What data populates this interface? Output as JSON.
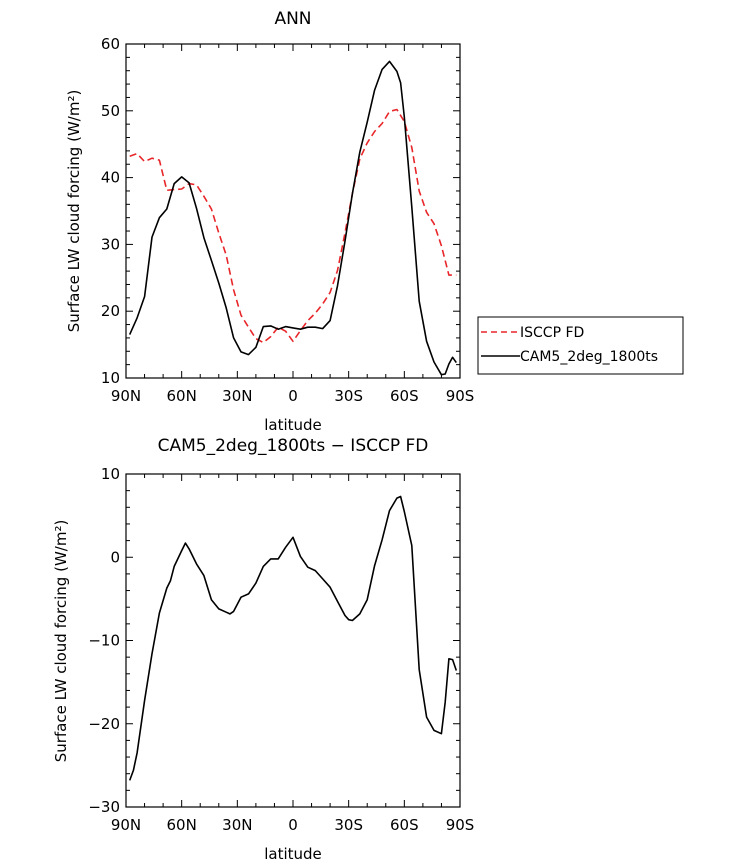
{
  "chart_data": [
    {
      "type": "line",
      "title": "ANN",
      "xlabel": "latitude",
      "ylabel": "Surface LW cloud forcing (W/m²)",
      "x_tick_labels": [
        "90N",
        "60N",
        "30N",
        "0",
        "30S",
        "60S",
        "90S"
      ],
      "y_tick_labels": [
        "10",
        "20",
        "30",
        "40",
        "50",
        "60"
      ],
      "xlim": [
        90,
        -90
      ],
      "ylim": [
        10,
        60
      ],
      "y_ticks": [
        10,
        20,
        30,
        40,
        50,
        60
      ],
      "legend_position": "right",
      "series": [
        {
          "name": "ISCCP FD",
          "color": "#e8262a",
          "dash": "dashed",
          "x": [
            88,
            84,
            80,
            76,
            72,
            68,
            64,
            60,
            56,
            52,
            48,
            44,
            40,
            36,
            32,
            28,
            24,
            20,
            16,
            12,
            8,
            4,
            0,
            -4,
            -8,
            -12,
            -16,
            -20,
            -24,
            -28,
            -32,
            -36,
            -40,
            -44,
            -48,
            -52,
            -56,
            -60,
            -64,
            -68,
            -72,
            -76,
            -80,
            -84,
            -88
          ],
          "y": [
            43.2,
            43.6,
            42.4,
            42.9,
            42.6,
            38.1,
            38.2,
            38.3,
            39.1,
            38.9,
            37.2,
            35.3,
            31.7,
            28.4,
            23.2,
            19.4,
            17.6,
            15.9,
            15.3,
            16.2,
            17.6,
            17.0,
            15.5,
            17.1,
            18.6,
            19.7,
            21.1,
            22.8,
            26.1,
            31.7,
            37.6,
            42.8,
            45.2,
            46.9,
            48.1,
            49.9,
            50.2,
            48.4,
            44.5,
            38.0,
            34.8,
            33.1,
            29.8,
            25.4,
            25.4
          ]
        },
        {
          "name": "CAM5_2deg_1800ts",
          "color": "#000000",
          "dash": "solid",
          "x": [
            88,
            84,
            80,
            76,
            72,
            68,
            64,
            60,
            56,
            52,
            48,
            44,
            40,
            36,
            32,
            28,
            24,
            20,
            16,
            12,
            8,
            4,
            0,
            -4,
            -8,
            -12,
            -16,
            -20,
            -24,
            -28,
            -32,
            -36,
            -40,
            -44,
            -48,
            -52,
            -56,
            -58,
            -60,
            -64,
            -68,
            -72,
            -76,
            -80,
            -82,
            -84,
            -86,
            -88
          ],
          "y": [
            16.5,
            19.0,
            22.2,
            31.1,
            34.0,
            35.3,
            39.1,
            40.1,
            39.2,
            35.4,
            31.0,
            27.6,
            24.2,
            20.5,
            16.0,
            13.9,
            13.5,
            14.6,
            17.7,
            17.8,
            17.3,
            17.7,
            17.5,
            17.3,
            17.6,
            17.6,
            17.4,
            18.6,
            23.8,
            30.5,
            37.6,
            43.8,
            48.3,
            53.1,
            56.2,
            57.4,
            55.9,
            54.2,
            49.1,
            35.6,
            21.5,
            15.5,
            12.4,
            10.5,
            10.6,
            12.1,
            13.1,
            12.3
          ]
        }
      ]
    },
    {
      "type": "line",
      "title": "CAM5_2deg_1800ts − ISCCP FD",
      "xlabel": "latitude",
      "ylabel": "Surface LW cloud forcing (W/m²)",
      "x_tick_labels": [
        "90N",
        "60N",
        "30N",
        "0",
        "30S",
        "60S",
        "90S"
      ],
      "y_tick_labels": [
        "−30",
        "−20",
        "−10",
        "0",
        "10"
      ],
      "xlim": [
        90,
        -90
      ],
      "ylim": [
        -30,
        10
      ],
      "y_ticks": [
        -30,
        -20,
        -10,
        0,
        10
      ],
      "series": [
        {
          "color": "#000000",
          "dash": "solid",
          "x": [
            88,
            86,
            84,
            80,
            76,
            72,
            68,
            66,
            64,
            60,
            58,
            56,
            52,
            48,
            44,
            40,
            36,
            34,
            32,
            28,
            24,
            20,
            16,
            12,
            8,
            4,
            0,
            -4,
            -8,
            -12,
            -16,
            -20,
            -24,
            -28,
            -30,
            -32,
            -36,
            -40,
            -44,
            -48,
            -52,
            -56,
            -58,
            -60,
            -64,
            -68,
            -72,
            -76,
            -80,
            -82,
            -84,
            -86,
            -88
          ],
          "y": [
            -26.8,
            -25.6,
            -23.5,
            -17.2,
            -11.6,
            -6.7,
            -3.7,
            -2.8,
            -1.1,
            0.8,
            1.7,
            1.0,
            -0.8,
            -2.2,
            -5.1,
            -6.2,
            -6.6,
            -6.8,
            -6.5,
            -4.8,
            -4.4,
            -3.1,
            -1.1,
            -0.2,
            -0.2,
            1.2,
            2.4,
            0.1,
            -1.2,
            -1.6,
            -2.6,
            -3.6,
            -5.3,
            -7.0,
            -7.5,
            -7.6,
            -6.8,
            -5.1,
            -1.0,
            2.1,
            5.6,
            7.1,
            7.3,
            5.5,
            1.4,
            -13.5,
            -19.2,
            -20.8,
            -21.2,
            -17.4,
            -12.2,
            -12.3,
            -13.6
          ]
        }
      ]
    }
  ]
}
